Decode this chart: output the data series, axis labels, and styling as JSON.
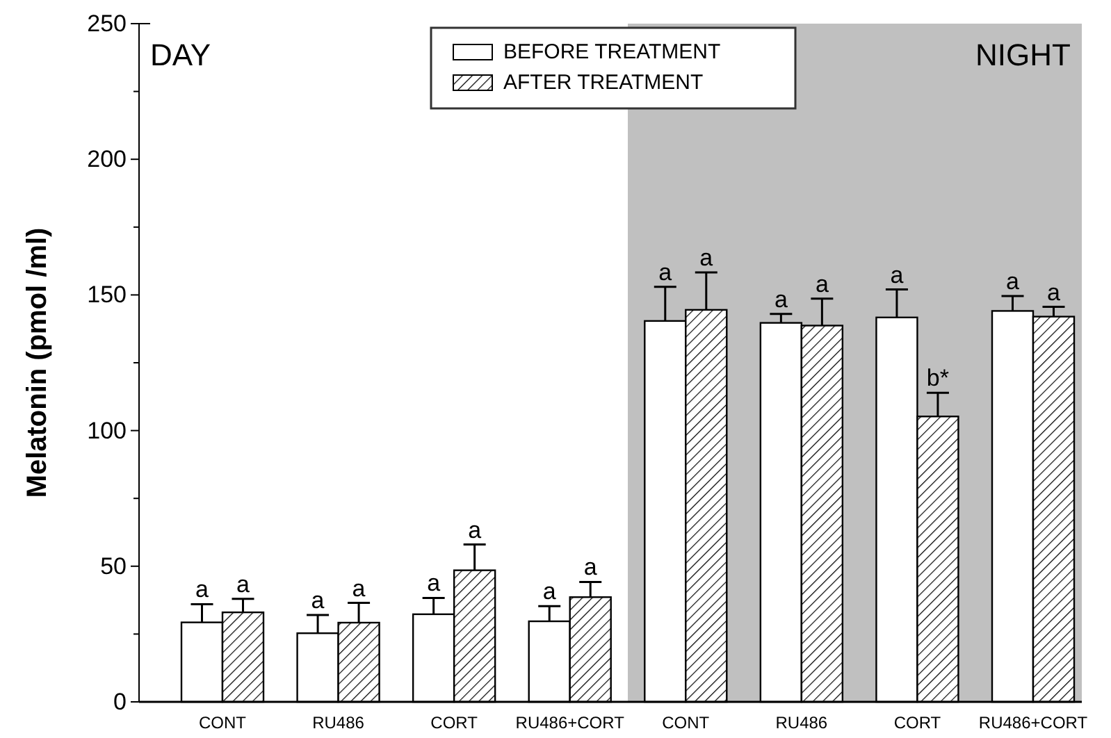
{
  "chart_data": {
    "type": "bar",
    "ylabel": "Melatonin (pmol /ml)",
    "categories": [
      "CONT",
      "RU486",
      "CORT",
      "RU486+CORT",
      "CONT",
      "RU486",
      "CORT",
      "RU486+CORT"
    ],
    "series": [
      {
        "name": "BEFORE TREATMENT",
        "color": "#ffffff",
        "values": [
          29.3,
          25.3,
          32.3,
          29.7,
          140.4,
          139.7,
          141.7,
          144.1
        ],
        "errors": [
          [
            29.3,
            36
          ],
          [
            25.3,
            32
          ],
          [
            32.3,
            38.3
          ],
          [
            29.7,
            35.3
          ],
          [
            140.4,
            153
          ],
          [
            139.7,
            143
          ],
          [
            141.7,
            152
          ],
          [
            144.1,
            149.6
          ]
        ],
        "value_labels": [
          "a",
          "a",
          "a",
          "a",
          "a",
          "a",
          "a",
          "a"
        ]
      },
      {
        "name": "AFTER TREATMENT",
        "color": "#000000",
        "values": [
          33,
          29.2,
          48.5,
          38.6,
          144.5,
          138.7,
          105.2,
          142
        ],
        "errors": [
          [
            33,
            38
          ],
          [
            29.2,
            36.5
          ],
          [
            48.5,
            58
          ],
          [
            38.6,
            44.2
          ],
          [
            144.5,
            158.3
          ],
          [
            138.7,
            148.6
          ],
          [
            105.2,
            113.9
          ],
          [
            142,
            145.6
          ]
        ],
        "value_labels": [
          "a",
          "a",
          "a",
          "a",
          "a",
          "a",
          "b*",
          "a"
        ]
      }
    ],
    "ylim": [
      0,
      250
    ],
    "yticks": [
      0,
      50,
      100,
      150,
      200,
      250
    ],
    "annotations": [
      "DAY",
      "NIGHT"
    ],
    "legend": "top"
  }
}
